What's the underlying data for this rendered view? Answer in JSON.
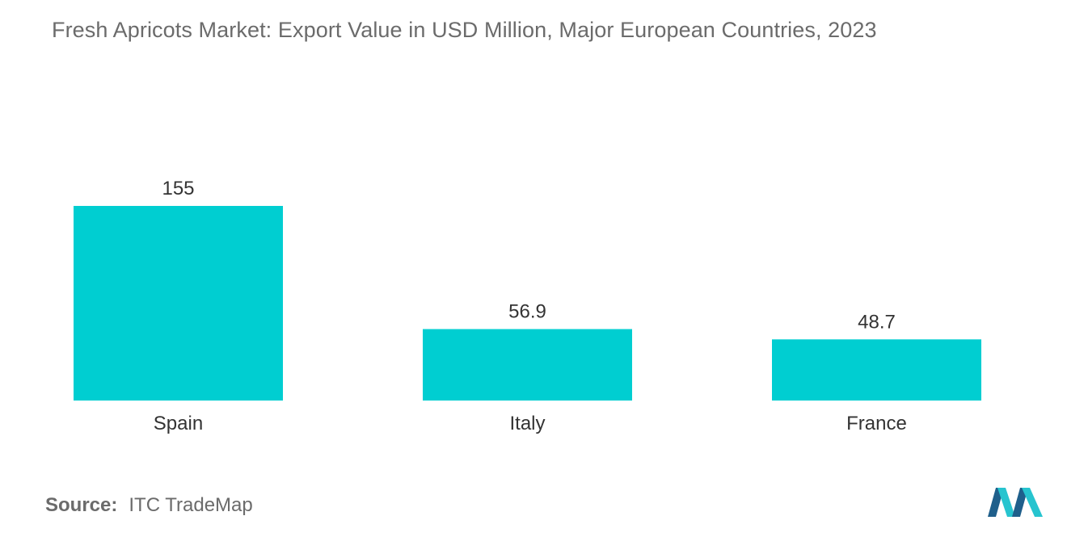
{
  "title": "Fresh Apricots Market: Export Value in USD Million, Major European Countries, 2023",
  "source": {
    "label": "Source:",
    "text": "ITC TradeMap"
  },
  "colors": {
    "bar": "#00CED1",
    "logo_dark": "#1f5f8b",
    "logo_light": "#27c4cf"
  },
  "chart_data": {
    "type": "bar",
    "title": "Fresh Apricots Market: Export Value in USD Million, Major European Countries, 2023",
    "categories": [
      "Spain",
      "Italy",
      "France"
    ],
    "values": [
      155,
      56.9,
      48.7
    ],
    "value_labels": [
      "155",
      "56.9",
      "48.7"
    ],
    "xlabel": "",
    "ylabel": "",
    "ylim": [
      0,
      155
    ],
    "grid": false,
    "legend": "none"
  }
}
